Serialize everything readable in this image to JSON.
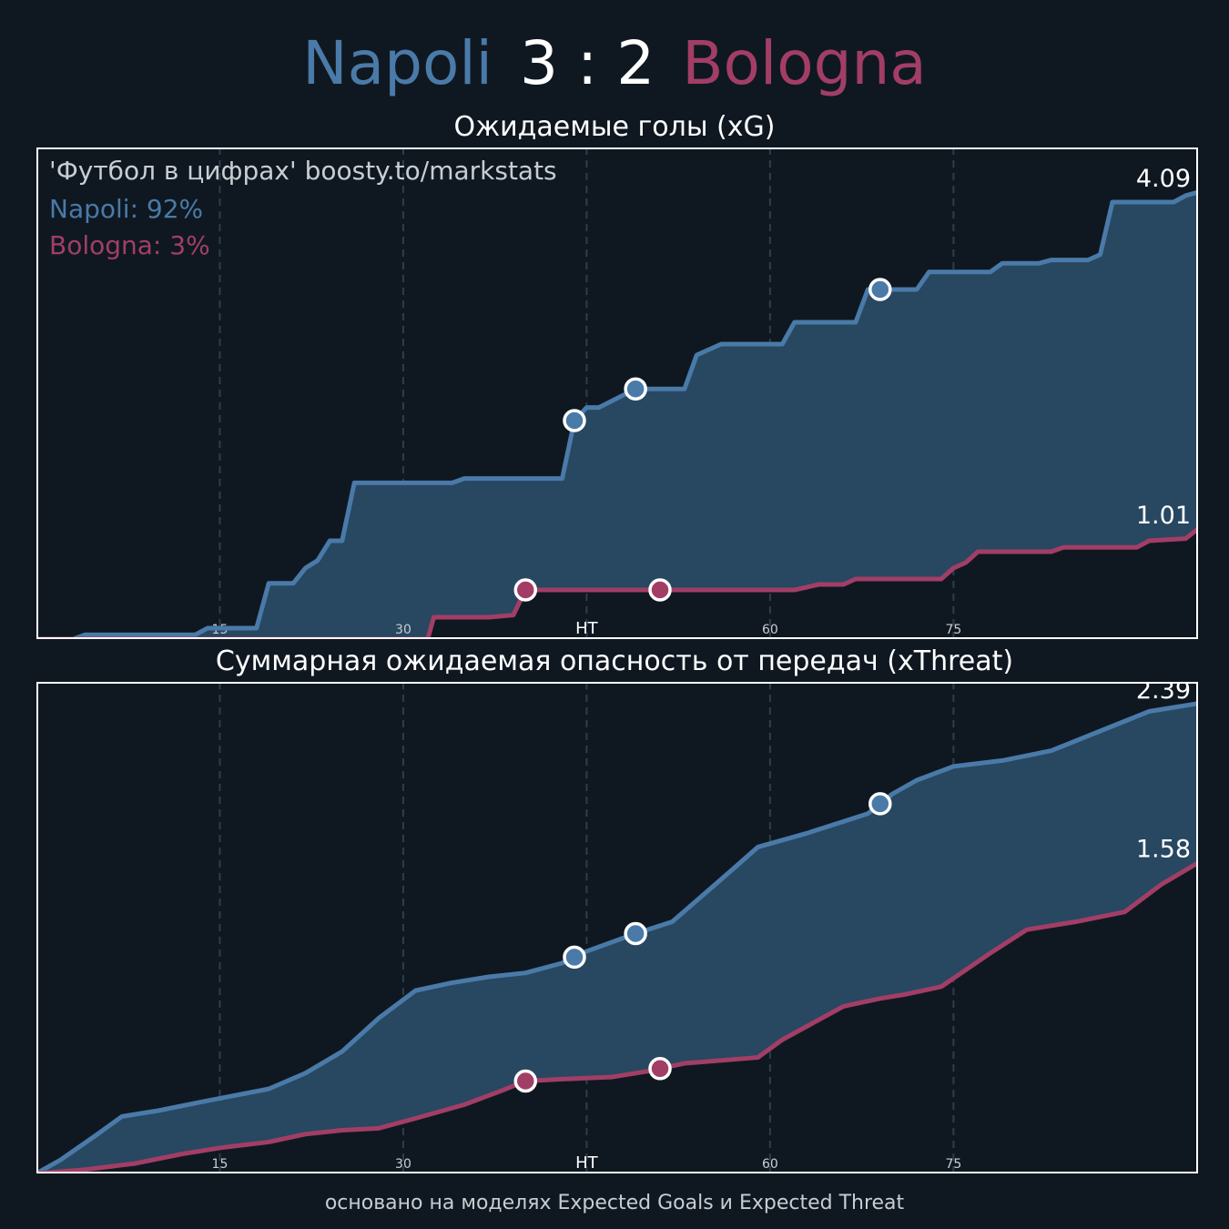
{
  "header": {
    "home_team": "Napoli",
    "score": "3 : 2",
    "away_team": "Bologna"
  },
  "overlay": {
    "credit": "'Футбол в цифрах' boosty.to/markstats",
    "home_prob": "Napoli: 92%",
    "away_prob": "Bologna: 3%"
  },
  "footer": "основано на моделях Expected Goals и Expected Threat",
  "colors": {
    "background": "#0f1821",
    "home": "#4a7aa8",
    "away": "#a23e66",
    "fill": "#284761",
    "frame": "#ffffff",
    "grid": "#2e3d4b"
  },
  "chart_data": [
    {
      "type": "line",
      "title": "Ожидаемые голы (xG)",
      "x_ticks": [
        15,
        30,
        45,
        60,
        75
      ],
      "x_tick_labels": [
        "15",
        "30",
        "HT",
        "60",
        "75"
      ],
      "xlim": [
        0,
        95
      ],
      "ylim": [
        0,
        4.5
      ],
      "grid": "vertical dashed",
      "end_labels": [
        "4.09",
        "1.01"
      ],
      "series": [
        {
          "name": "Napoli",
          "final": 4.09,
          "points": [
            [
              0,
              0
            ],
            [
              3,
              0
            ],
            [
              4,
              0.04
            ],
            [
              13,
              0.04
            ],
            [
              14,
              0.1
            ],
            [
              18,
              0.1
            ],
            [
              19,
              0.51
            ],
            [
              21,
              0.51
            ],
            [
              22,
              0.65
            ],
            [
              23,
              0.72
            ],
            [
              24,
              0.9
            ],
            [
              25,
              0.9
            ],
            [
              26,
              1.43
            ],
            [
              34,
              1.43
            ],
            [
              35,
              1.47
            ],
            [
              43,
              1.47
            ],
            [
              44,
              2.0
            ],
            [
              45,
              2.12
            ],
            [
              46,
              2.12
            ],
            [
              49,
              2.29
            ],
            [
              53,
              2.29
            ],
            [
              54,
              2.6
            ],
            [
              56,
              2.7
            ],
            [
              61,
              2.7
            ],
            [
              62,
              2.9
            ],
            [
              67,
              2.9
            ],
            [
              68,
              3.2
            ],
            [
              72,
              3.2
            ],
            [
              73,
              3.36
            ],
            [
              78,
              3.36
            ],
            [
              79,
              3.44
            ],
            [
              82,
              3.44
            ],
            [
              83,
              3.47
            ],
            [
              86,
              3.47
            ],
            [
              87,
              3.52
            ],
            [
              88,
              4.0
            ],
            [
              93,
              4.0
            ],
            [
              94,
              4.06
            ],
            [
              95,
              4.09
            ]
          ],
          "goals": [
            44,
            49,
            69
          ]
        },
        {
          "name": "Bologna",
          "final": 1.01,
          "points": [
            [
              0,
              0
            ],
            [
              32,
              0
            ],
            [
              32.5,
              0.2
            ],
            [
              37,
              0.2
            ],
            [
              39,
              0.22
            ],
            [
              40,
              0.45
            ],
            [
              51,
              0.45
            ],
            [
              62,
              0.45
            ],
            [
              64,
              0.5
            ],
            [
              66,
              0.5
            ],
            [
              67,
              0.55
            ],
            [
              74,
              0.55
            ],
            [
              75,
              0.65
            ],
            [
              76,
              0.7
            ],
            [
              77,
              0.8
            ],
            [
              83,
              0.8
            ],
            [
              84,
              0.84
            ],
            [
              90,
              0.84
            ],
            [
              91,
              0.9
            ],
            [
              94,
              0.92
            ],
            [
              95,
              1.01
            ]
          ],
          "goals": [
            40,
            51
          ]
        }
      ]
    },
    {
      "type": "line",
      "title": "Суммарная ожидаемая опасность от передач (xThreat)",
      "x_ticks": [
        15,
        30,
        45,
        60,
        75
      ],
      "x_tick_labels": [
        "15",
        "30",
        "HT",
        "60",
        "75"
      ],
      "xlim": [
        0,
        95
      ],
      "ylim": [
        0,
        2.5
      ],
      "grid": "vertical dashed",
      "end_labels": [
        "2.39",
        "1.58"
      ],
      "series": [
        {
          "name": "Napoli",
          "final": 2.39,
          "points": [
            [
              0,
              0
            ],
            [
              2,
              0.07
            ],
            [
              5,
              0.2
            ],
            [
              7,
              0.29
            ],
            [
              10,
              0.32
            ],
            [
              14,
              0.37
            ],
            [
              19,
              0.43
            ],
            [
              22,
              0.51
            ],
            [
              25,
              0.62
            ],
            [
              28,
              0.79
            ],
            [
              31,
              0.93
            ],
            [
              34,
              0.97
            ],
            [
              37,
              1.0
            ],
            [
              40,
              1.02
            ],
            [
              43,
              1.07
            ],
            [
              45,
              1.13
            ],
            [
              49,
              1.22
            ],
            [
              52,
              1.28
            ],
            [
              57,
              1.55
            ],
            [
              59,
              1.66
            ],
            [
              63,
              1.73
            ],
            [
              66,
              1.79
            ],
            [
              68,
              1.83
            ],
            [
              70,
              1.93
            ],
            [
              72,
              2.0
            ],
            [
              75,
              2.07
            ],
            [
              79,
              2.1
            ],
            [
              83,
              2.15
            ],
            [
              87,
              2.25
            ],
            [
              91,
              2.35
            ],
            [
              95,
              2.39
            ]
          ],
          "goals": [
            44,
            49,
            69
          ]
        },
        {
          "name": "Bologna",
          "final": 1.58,
          "points": [
            [
              0,
              0
            ],
            [
              4,
              0.02
            ],
            [
              8,
              0.05
            ],
            [
              12,
              0.1
            ],
            [
              15,
              0.13
            ],
            [
              19,
              0.16
            ],
            [
              22,
              0.2
            ],
            [
              25,
              0.22
            ],
            [
              28,
              0.23
            ],
            [
              31,
              0.28
            ],
            [
              35,
              0.35
            ],
            [
              38,
              0.42
            ],
            [
              40,
              0.47
            ],
            [
              43,
              0.48
            ],
            [
              47,
              0.49
            ],
            [
              50,
              0.52
            ],
            [
              53,
              0.56
            ],
            [
              59,
              0.59
            ],
            [
              61,
              0.68
            ],
            [
              66,
              0.85
            ],
            [
              69,
              0.89
            ],
            [
              71,
              0.91
            ],
            [
              74,
              0.95
            ],
            [
              78,
              1.12
            ],
            [
              81,
              1.24
            ],
            [
              85,
              1.28
            ],
            [
              89,
              1.33
            ],
            [
              92,
              1.47
            ],
            [
              95,
              1.58
            ]
          ],
          "goals": [
            40,
            51
          ]
        }
      ]
    }
  ]
}
